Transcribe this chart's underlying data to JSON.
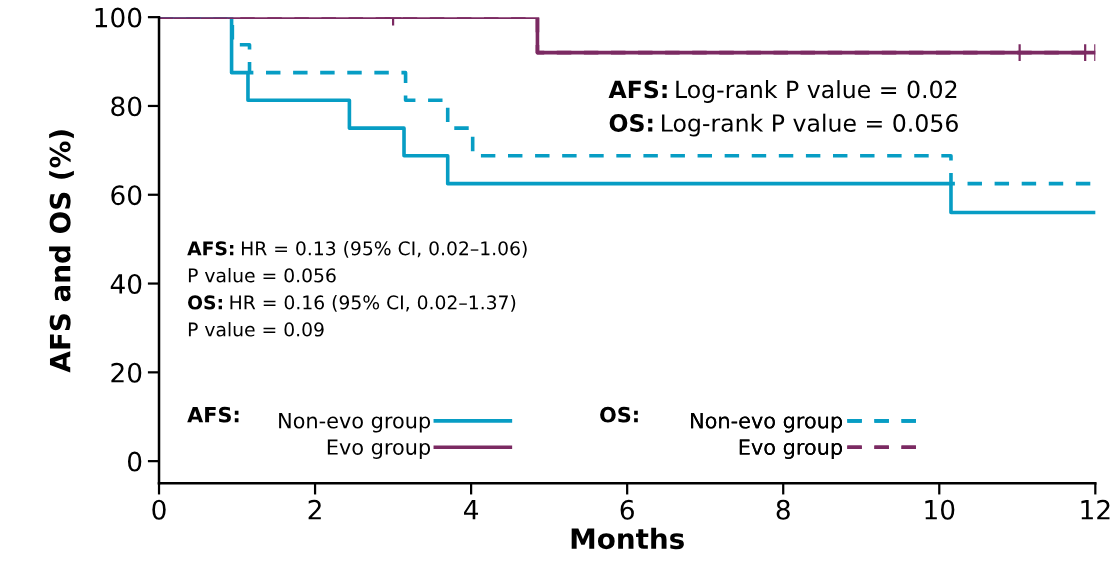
{
  "chart_data": {
    "type": "step",
    "xlabel": "Months",
    "ylabel": "AFS and OS (%)",
    "xlim": [
      0,
      12
    ],
    "ylim": [
      -5,
      100
    ],
    "xticks": [
      0,
      2,
      4,
      6,
      8,
      10,
      12
    ],
    "yticks": [
      0,
      20,
      40,
      60,
      80,
      100
    ],
    "grid": false,
    "legend": "bottom left",
    "legend_title": [
      "AFS:",
      "OS:"
    ],
    "series": [
      {
        "name": "Non-evo group",
        "color": "#079dc4",
        "line_style": "solid",
        "x": [
          0,
          0.93,
          1.14,
          2.44,
          3.14,
          3.7,
          10.15,
          12
        ],
        "values": [
          100,
          87.5,
          81.3,
          75,
          68.8,
          62.5,
          56,
          56
        ]
      },
      {
        "name": "Evo group",
        "color": "#7b2a62",
        "line_style": "solid",
        "x": [
          0,
          4.85,
          12
        ],
        "values": [
          100,
          92,
          92
        ]
      },
      {
        "name": "Non-evo group",
        "color": "#079dc4",
        "line_style": "dashed",
        "x": [
          0,
          0.94,
          1.16,
          3.16,
          3.7,
          4.02,
          10.15,
          12
        ],
        "values": [
          100,
          93.8,
          87.5,
          81.3,
          75,
          68.8,
          62.5,
          62.5
        ]
      },
      {
        "name": "Evo group",
        "color": "#7b2a62",
        "line_style": "dashed",
        "x": [
          0,
          4.85,
          12
        ],
        "values": [
          100,
          92,
          92
        ]
      },
      {
        "type": "scatter",
        "marker": "cross",
        "color": "#7b2a62",
        "x": [
          3,
          11.03,
          11.87,
          12
        ],
        "values": [
          100,
          92,
          92,
          92
        ]
      }
    ],
    "annotations": [
      "AFS: Log-rank P value = 0.02",
      "OS: Log-rank P value = 0.056",
      "AFS: HR = 0.13 (95% CI, 0.02–1.06)",
      "P value = 0.056",
      "OS: HR = 0.16 (95% CI, 0.02–1.37)",
      "P value = 0.09"
    ]
  }
}
